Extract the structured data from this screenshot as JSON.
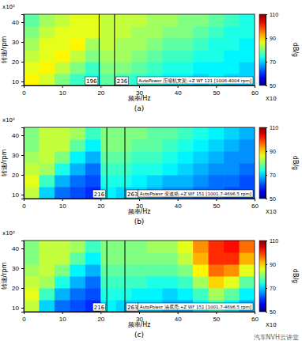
{
  "chart_data": [
    {
      "type": "heatmap",
      "subtitle": "(a)",
      "xlabel": "频率/Hz",
      "ylabel": "转速/rpm",
      "x_unit_label": "X10",
      "y_unit_label": "x10²",
      "xlim": [
        0,
        60
      ],
      "ylim": [
        8,
        44
      ],
      "xticks": [
        0,
        10,
        20,
        30,
        40,
        50,
        60
      ],
      "yticks": [
        10,
        20,
        30,
        40
      ],
      "x_edges": [
        0,
        4,
        8,
        12,
        16,
        20,
        24,
        28,
        32,
        36,
        40,
        44,
        48,
        52,
        56,
        60
      ],
      "y_edges": [
        8,
        14,
        20,
        26,
        32,
        38,
        44
      ],
      "cells": [
        [
          88,
          85,
          80,
          76,
          74,
          78,
          76,
          75,
          74,
          72,
          72,
          70,
          72,
          70,
          70
        ],
        [
          86,
          88,
          84,
          80,
          76,
          80,
          80,
          78,
          76,
          74,
          74,
          72,
          72,
          72,
          70
        ],
        [
          84,
          86,
          88,
          84,
          80,
          82,
          82,
          80,
          78,
          76,
          76,
          74,
          74,
          72,
          72
        ],
        [
          82,
          86,
          86,
          88,
          82,
          84,
          82,
          82,
          80,
          78,
          78,
          76,
          74,
          74,
          72
        ],
        [
          80,
          84,
          86,
          86,
          86,
          84,
          84,
          82,
          82,
          80,
          80,
          78,
          76,
          74,
          74
        ],
        [
          78,
          82,
          84,
          86,
          86,
          84,
          84,
          84,
          82,
          82,
          80,
          80,
          78,
          76,
          74
        ]
      ],
      "colorbar_range": [
        50,
        110
      ],
      "colorbar_ticks": [
        50,
        70,
        90,
        110
      ],
      "colorbar_label": "dB/g",
      "vlines": [
        {
          "value": 19.6,
          "label": "196"
        },
        {
          "value": 23.6,
          "label": "236"
        }
      ],
      "legend_text": "AutoPower 压缩机支架:+Z WF 121 [1006-4004 rpm]"
    },
    {
      "type": "heatmap",
      "subtitle": "(b)",
      "xlabel": "频率/Hz",
      "ylabel": "转速/rpm",
      "x_unit_label": "X10",
      "y_unit_label": "x10²",
      "xlim": [
        0,
        60
      ],
      "ylim": [
        8,
        44
      ],
      "xticks": [
        0,
        10,
        20,
        30,
        40,
        50,
        60
      ],
      "yticks": [
        10,
        20,
        30,
        40
      ],
      "x_edges": [
        0,
        4,
        8,
        12,
        16,
        20,
        24,
        28,
        32,
        36,
        40,
        44,
        48,
        52,
        56,
        60
      ],
      "y_edges": [
        8,
        14,
        20,
        26,
        32,
        38,
        44
      ],
      "cells": [
        [
          84,
          70,
          64,
          62,
          60,
          72,
          70,
          70,
          68,
          66,
          66,
          64,
          64,
          62,
          62
        ],
        [
          86,
          76,
          68,
          64,
          62,
          74,
          74,
          72,
          70,
          68,
          68,
          66,
          64,
          64,
          62
        ],
        [
          84,
          82,
          74,
          68,
          64,
          76,
          76,
          74,
          74,
          72,
          70,
          68,
          66,
          66,
          64
        ],
        [
          82,
          84,
          80,
          72,
          68,
          78,
          78,
          76,
          76,
          74,
          72,
          70,
          68,
          66,
          66
        ],
        [
          80,
          84,
          84,
          78,
          72,
          80,
          80,
          78,
          78,
          76,
          74,
          72,
          70,
          68,
          66
        ],
        [
          80,
          84,
          84,
          82,
          76,
          80,
          80,
          80,
          78,
          78,
          76,
          74,
          72,
          70,
          68
        ]
      ],
      "colorbar_range": [
        50,
        110
      ],
      "colorbar_ticks": [
        50,
        70,
        90,
        110
      ],
      "colorbar_label": "dB/g",
      "vlines": [
        {
          "value": 21.6,
          "label": "216"
        },
        {
          "value": 26.3,
          "label": "263"
        }
      ],
      "legend_text": "AutoPower 变速箱:+Z WF 151 [1001.7-4696.5 rpm]"
    },
    {
      "type": "heatmap",
      "subtitle": "(c)",
      "xlabel": "频率/Hz",
      "ylabel": "转速/rpm",
      "x_unit_label": "X10",
      "y_unit_label": "x10²",
      "xlim": [
        0,
        60
      ],
      "ylim": [
        8,
        44
      ],
      "xticks": [
        0,
        10,
        20,
        30,
        40,
        50,
        60
      ],
      "yticks": [
        10,
        20,
        30,
        40
      ],
      "x_edges": [
        0,
        4,
        8,
        12,
        16,
        20,
        24,
        28,
        32,
        36,
        40,
        44,
        48,
        52,
        56,
        60
      ],
      "y_edges": [
        8,
        14,
        20,
        26,
        32,
        38,
        44
      ],
      "cells": [
        [
          84,
          70,
          64,
          62,
          60,
          72,
          70,
          70,
          70,
          68,
          68,
          72,
          76,
          72,
          68
        ],
        [
          86,
          76,
          68,
          64,
          62,
          74,
          74,
          72,
          72,
          70,
          72,
          76,
          82,
          78,
          72
        ],
        [
          84,
          82,
          74,
          68,
          64,
          76,
          76,
          76,
          74,
          74,
          76,
          82,
          90,
          86,
          78
        ],
        [
          82,
          84,
          80,
          72,
          68,
          78,
          78,
          78,
          78,
          78,
          80,
          88,
          96,
          94,
          86
        ],
        [
          80,
          84,
          84,
          78,
          72,
          80,
          80,
          80,
          80,
          80,
          84,
          92,
          100,
          100,
          92
        ],
        [
          80,
          84,
          84,
          82,
          76,
          80,
          80,
          80,
          82,
          82,
          86,
          94,
          100,
          102,
          96
        ]
      ],
      "colorbar_range": [
        50,
        110
      ],
      "colorbar_ticks": [
        50,
        70,
        90,
        110
      ],
      "colorbar_label": "dB/g",
      "vlines": [
        {
          "value": 21.6,
          "label": "216"
        },
        {
          "value": 26.3,
          "label": "263"
        }
      ],
      "legend_text": "AutoPower 油底壳:+Z WF 151 [1001.7-4696.5 rpm]",
      "annotations": [
        "汽车NVH云讲堂"
      ]
    }
  ]
}
